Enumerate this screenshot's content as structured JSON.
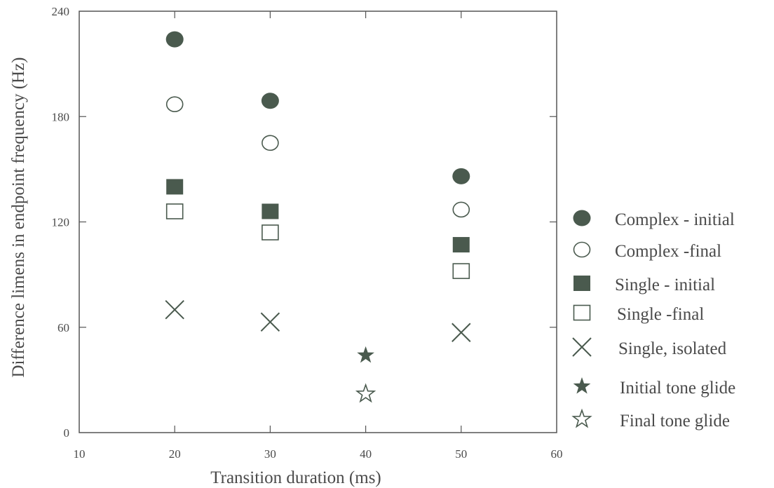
{
  "chart_data": {
    "type": "scatter",
    "title": "",
    "xlabel": "Transition duration (ms)",
    "ylabel": "Difference limens in endpoint frequency (Hz)",
    "xlim": [
      10,
      60
    ],
    "ylim": [
      0,
      240
    ],
    "xticks": [
      10,
      20,
      30,
      40,
      50,
      60
    ],
    "yticks": [
      0,
      60,
      120,
      180,
      240
    ],
    "grid": false,
    "legend_position": "right",
    "colors": {
      "marker": "#4a5a4e",
      "axis": "#555555",
      "text": "#4a4a4a"
    },
    "series": [
      {
        "name": "Complex - initial",
        "marker": "filled-circle",
        "points": [
          [
            20,
            224
          ],
          [
            30,
            189
          ],
          [
            50,
            146
          ]
        ]
      },
      {
        "name": "Complex -final",
        "marker": "open-circle",
        "points": [
          [
            20,
            187
          ],
          [
            30,
            165
          ],
          [
            50,
            127
          ]
        ]
      },
      {
        "name": "Single - initial",
        "marker": "filled-square",
        "points": [
          [
            20,
            140
          ],
          [
            30,
            126
          ],
          [
            50,
            107
          ]
        ]
      },
      {
        "name": "Single -final",
        "marker": "open-square",
        "points": [
          [
            20,
            126
          ],
          [
            30,
            114
          ],
          [
            50,
            92
          ]
        ]
      },
      {
        "name": "Single, isolated",
        "marker": "cross",
        "points": [
          [
            20,
            70
          ],
          [
            30,
            63
          ],
          [
            50,
            57
          ]
        ]
      },
      {
        "name": "Initial tone glide",
        "marker": "filled-star",
        "points": [
          [
            40,
            44
          ]
        ]
      },
      {
        "name": "Final tone glide",
        "marker": "open-star",
        "points": [
          [
            40,
            22
          ]
        ]
      }
    ]
  }
}
